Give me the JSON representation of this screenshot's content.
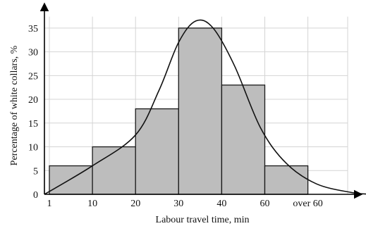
{
  "chart_data": {
    "type": "bar",
    "title": "",
    "xlabel": "Labour travel time, min",
    "ylabel": "Percentage of white collars, %",
    "x_tick_labels": [
      "1",
      "10",
      "20",
      "30",
      "40",
      "60",
      "over 60"
    ],
    "categories": [
      "1–10",
      "10–20",
      "20–30",
      "30–40",
      "40–60",
      "60–over 60"
    ],
    "values": [
      6,
      10,
      18,
      35,
      23,
      6
    ],
    "ylim": [
      0,
      38
    ],
    "y_ticks": [
      0,
      5,
      10,
      15,
      20,
      25,
      30,
      35
    ],
    "grid": true,
    "overlay": {
      "type": "line",
      "smooth": true,
      "peak_value": 36.5
    }
  }
}
